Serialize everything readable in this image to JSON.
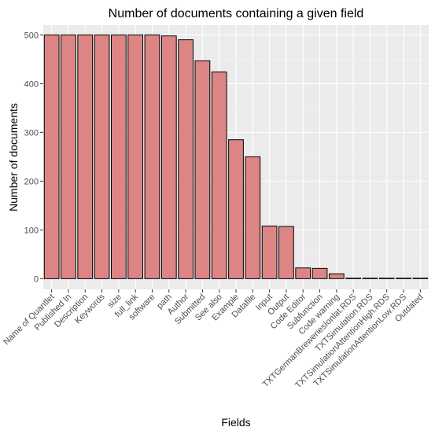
{
  "chart_data": {
    "type": "bar",
    "title": "Number of documents containing a given field",
    "xlabel": "Fields",
    "ylabel": "Number of documents",
    "ylim": [
      -22,
      520
    ],
    "yticks": [
      0,
      100,
      200,
      300,
      400,
      500
    ],
    "grid": true,
    "categories": [
      "Name of Quantlet",
      "Published In",
      "Description",
      "Keywords",
      "size",
      "full_link",
      "software",
      "path",
      "Author",
      "Submitted",
      "See also",
      "Example",
      "Datafile",
      "Input",
      "Output",
      "Code Editor",
      "Subfunction",
      "Code warning",
      "TXTGermanBreweriesIonlat.RDS",
      "TXTSimulation.RDS",
      "TXTSimulationAttentionHigh.RDS",
      "TXTSimulationAttentionLow.RDS",
      "Outdated"
    ],
    "values": [
      500,
      500,
      500,
      500,
      500,
      500,
      500,
      498,
      490,
      447,
      424,
      285,
      250,
      108,
      107,
      22,
      21,
      10,
      1,
      1,
      1,
      1,
      1
    ],
    "colors": {
      "bar_fill": "#dd8585",
      "bar_stroke": "#000000",
      "panel_bg": "#ebebeb",
      "grid_major": "#ffffff",
      "grid_minor": "#f5f5f5",
      "tick_text": "#4d4d4d",
      "label_text": "#000000"
    }
  }
}
